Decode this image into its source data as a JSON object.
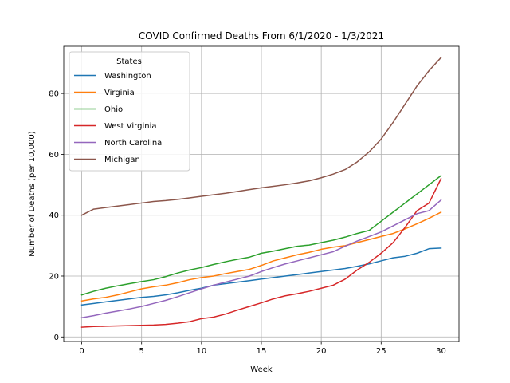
{
  "chart_data": {
    "type": "line",
    "title": "COVID Confirmed Deaths From 6/1/2020 - 1/3/2021",
    "xlabel": "Week",
    "ylabel": "Number of Deaths (per 10,000)",
    "xlim": [
      -1.5,
      31.5
    ],
    "ylim": [
      -1.5,
      95.5
    ],
    "xticks": [
      0,
      5,
      10,
      15,
      20,
      25,
      30
    ],
    "yticks": [
      0,
      20,
      40,
      60,
      80
    ],
    "grid": true,
    "legend": {
      "title": "States",
      "placement": "upper-left"
    },
    "x": [
      0,
      1,
      2,
      3,
      4,
      5,
      6,
      7,
      8,
      9,
      10,
      11,
      12,
      13,
      14,
      15,
      16,
      17,
      18,
      19,
      20,
      21,
      22,
      23,
      24,
      25,
      26,
      27,
      28,
      29,
      30
    ],
    "series": [
      {
        "name": "Washington",
        "color": "#1f77b4",
        "values": [
          10.5,
          11.0,
          11.5,
          12.0,
          12.5,
          13.0,
          13.3,
          13.8,
          14.5,
          15.3,
          16.0,
          17.0,
          17.5,
          18.0,
          18.5,
          19.0,
          19.5,
          20.0,
          20.5,
          21.0,
          21.5,
          22.0,
          22.5,
          23.2,
          24.0,
          25.0,
          26.0,
          26.5,
          27.5,
          29.0,
          29.2
        ]
      },
      {
        "name": "Virginia",
        "color": "#ff7f0e",
        "values": [
          11.8,
          12.5,
          13.0,
          13.8,
          14.8,
          15.8,
          16.5,
          17.0,
          17.8,
          18.8,
          19.5,
          20.0,
          20.8,
          21.5,
          22.2,
          23.5,
          25.0,
          26.0,
          27.0,
          27.8,
          28.8,
          29.5,
          30.0,
          31.0,
          32.0,
          33.0,
          34.0,
          35.5,
          37.2,
          39.0,
          41.0
        ]
      },
      {
        "name": "Ohio",
        "color": "#2ca02c",
        "values": [
          13.8,
          15.0,
          16.0,
          16.8,
          17.5,
          18.2,
          18.8,
          19.8,
          21.0,
          22.0,
          22.8,
          23.8,
          24.7,
          25.5,
          26.2,
          27.5,
          28.2,
          29.0,
          29.8,
          30.2,
          31.0,
          31.8,
          32.8,
          34.0,
          35.0,
          38.0,
          41.0,
          44.0,
          47.0,
          50.0,
          53.0
        ]
      },
      {
        "name": "West Virginia",
        "color": "#d62728",
        "values": [
          3.2,
          3.4,
          3.5,
          3.6,
          3.7,
          3.8,
          3.9,
          4.1,
          4.5,
          5.0,
          6.0,
          6.5,
          7.5,
          8.8,
          10.0,
          11.2,
          12.5,
          13.5,
          14.2,
          15.0,
          16.0,
          17.0,
          19.0,
          22.0,
          24.5,
          27.5,
          31.0,
          36.0,
          41.5,
          44.0,
          52.0
        ]
      },
      {
        "name": "North Carolina",
        "color": "#9467bd",
        "values": [
          6.3,
          7.0,
          7.8,
          8.5,
          9.2,
          10.0,
          11.0,
          12.0,
          13.2,
          14.5,
          15.8,
          17.0,
          18.0,
          19.0,
          20.0,
          21.5,
          22.8,
          24.0,
          25.0,
          26.0,
          27.0,
          28.0,
          29.8,
          31.5,
          33.0,
          34.5,
          36.5,
          38.5,
          40.5,
          41.5,
          45.0
        ]
      },
      {
        "name": "Michigan",
        "color": "#8c564b",
        "values": [
          40.0,
          42.0,
          42.5,
          43.0,
          43.5,
          44.0,
          44.5,
          44.8,
          45.2,
          45.7,
          46.2,
          46.7,
          47.2,
          47.8,
          48.4,
          49.0,
          49.5,
          50.0,
          50.6,
          51.3,
          52.3,
          53.5,
          55.0,
          57.5,
          60.8,
          65.0,
          70.5,
          76.5,
          82.5,
          87.5,
          91.8
        ]
      }
    ]
  }
}
